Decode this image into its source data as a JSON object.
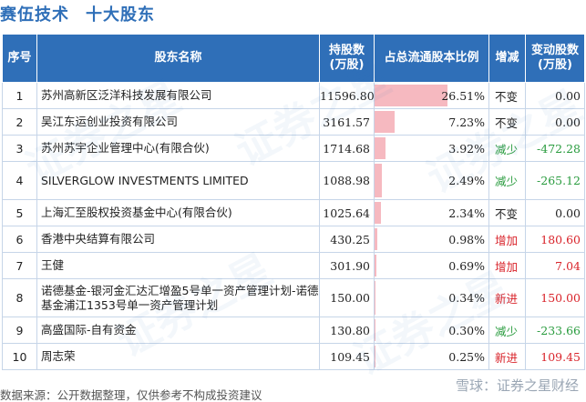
{
  "header": {
    "company": "赛伍技术",
    "subject": "十大股东"
  },
  "table": {
    "columns": [
      "序号",
      "股东名称",
      "持股数\n(万股)",
      "占总流通股本比例",
      "增减",
      "变动股数\n(万股)"
    ],
    "rows": [
      {
        "no": "1",
        "name": "苏州高新区泛洋科技发展有限公司",
        "shares": "11596.80",
        "ratio": "26.51%",
        "ratio_value": 26.51,
        "trend": "不变",
        "trend_type": "flat",
        "change": "0.00"
      },
      {
        "no": "2",
        "name": "吴江东运创业投资有限公司",
        "shares": "3161.57",
        "ratio": "7.23%",
        "ratio_value": 7.23,
        "trend": "不变",
        "trend_type": "flat",
        "change": "0.00"
      },
      {
        "no": "3",
        "name": "苏州苏宇企业管理中心(有限合伙)",
        "shares": "1714.68",
        "ratio": "3.92%",
        "ratio_value": 3.92,
        "trend": "减少",
        "trend_type": "down",
        "change": "-472.28"
      },
      {
        "no": "4",
        "name": "SILVERGLOW INVESTMENTS LIMITED",
        "shares": "1088.98",
        "ratio": "2.49%",
        "ratio_value": 2.49,
        "trend": "减少",
        "trend_type": "down",
        "change": "-265.12",
        "tall": true
      },
      {
        "no": "5",
        "name": "上海汇至股权投资基金中心(有限合伙)",
        "shares": "1025.64",
        "ratio": "2.34%",
        "ratio_value": 2.34,
        "trend": "不变",
        "trend_type": "flat",
        "change": "0.00"
      },
      {
        "no": "6",
        "name": "香港中央结算有限公司",
        "shares": "430.25",
        "ratio": "0.98%",
        "ratio_value": 0.98,
        "trend": "增加",
        "trend_type": "up",
        "change": "180.60"
      },
      {
        "no": "7",
        "name": "王健",
        "shares": "301.90",
        "ratio": "0.69%",
        "ratio_value": 0.69,
        "trend": "增加",
        "trend_type": "up",
        "change": "7.04"
      },
      {
        "no": "8",
        "name": "诺德基金-银河金汇达汇增盈5号单一资产管理计划-诺德基金浦江1353号单一资产管理计划",
        "shares": "150.00",
        "ratio": "0.34%",
        "ratio_value": 0.34,
        "trend": "新进",
        "trend_type": "up",
        "change": "150.00",
        "tall": true
      },
      {
        "no": "9",
        "name": "高盛国际-自有资金",
        "shares": "130.80",
        "ratio": "0.30%",
        "ratio_value": 0.3,
        "trend": "减少",
        "trend_type": "down",
        "change": "-233.66"
      },
      {
        "no": "10",
        "name": "周志荣",
        "shares": "109.45",
        "ratio": "0.25%",
        "ratio_value": 0.25,
        "trend": "新进",
        "trend_type": "up",
        "change": "109.45"
      }
    ]
  },
  "footer": {
    "source": "数据来源：公开数据整理，仅供参考不构成投资建议",
    "mark": "雪球：证券之星财经"
  },
  "watermark": {
    "text": "证券之星"
  }
}
